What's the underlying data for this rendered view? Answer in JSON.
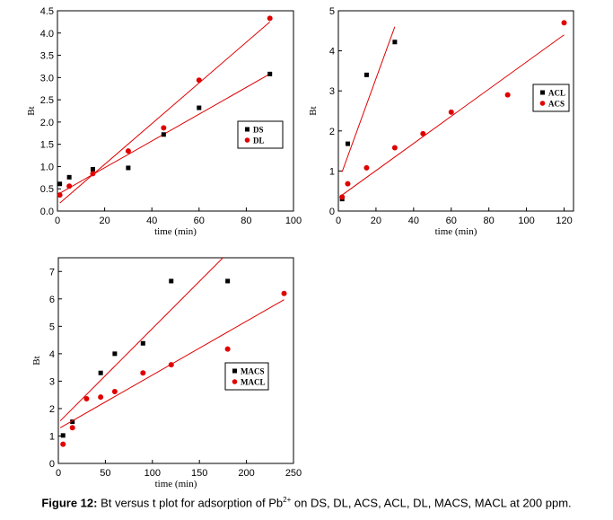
{
  "caption": {
    "label": "Figure 12:",
    "text_before": " Bt versus t plot for adsorption of Pb",
    "superscript": "2+",
    "text_after": " on DS, DL, ACS, ACL, DL, MACS, MACL at 200 ppm."
  },
  "chart_data": [
    {
      "type": "scatter",
      "title": "",
      "xlabel": "time (min)",
      "ylabel": "Bt",
      "xlim": [
        0,
        100
      ],
      "ylim": [
        0,
        4.5
      ],
      "xticks": [
        0,
        20,
        40,
        60,
        80,
        100
      ],
      "xtick_labels": [
        "0",
        "20",
        "40",
        "60",
        "80",
        "100"
      ],
      "yticks": [
        0,
        0.5,
        1.0,
        1.5,
        2.0,
        2.5,
        3.0,
        3.5,
        4.0,
        4.5
      ],
      "ytick_labels": [
        "0.0",
        "0.5",
        "1.0",
        "1.5",
        "2.0",
        "2.5",
        "3.0",
        "3.5",
        "4.0",
        "4.5"
      ],
      "grid": false,
      "legend_position": "right",
      "series": [
        {
          "name": "DS",
          "marker": "square",
          "color": "#000000",
          "x": [
            1,
            5,
            15,
            30,
            45,
            60,
            90
          ],
          "y": [
            0.61,
            0.76,
            0.94,
            0.97,
            1.72,
            2.32,
            3.08
          ],
          "fit": [
            [
              1,
              0.4
            ],
            [
              90,
              3.08
            ]
          ]
        },
        {
          "name": "DL",
          "marker": "circle",
          "color": "#e00000",
          "x": [
            1,
            5,
            15,
            30,
            45,
            60,
            90
          ],
          "y": [
            0.36,
            0.56,
            0.84,
            1.35,
            1.87,
            2.94,
            4.33
          ],
          "fit": [
            [
              1,
              0.18
            ],
            [
              90,
              4.25
            ]
          ]
        }
      ]
    },
    {
      "type": "scatter",
      "title": "",
      "xlabel": "time (min)",
      "ylabel": "Bt",
      "xlim": [
        0,
        125
      ],
      "ylim": [
        0,
        5
      ],
      "xticks": [
        0,
        20,
        40,
        60,
        80,
        100,
        120
      ],
      "xtick_labels": [
        "0",
        "20",
        "40",
        "60",
        "80",
        "100",
        "120"
      ],
      "yticks": [
        0,
        1,
        2,
        3,
        4,
        5
      ],
      "ytick_labels": [
        "0",
        "1",
        "2",
        "3",
        "4",
        "5"
      ],
      "grid": false,
      "legend_position": "right",
      "series": [
        {
          "name": "ACL",
          "marker": "square",
          "color": "#000000",
          "x": [
            2,
            5,
            15,
            30
          ],
          "y": [
            0.3,
            1.68,
            3.4,
            4.22
          ],
          "fit": [
            [
              2,
              0.98
            ],
            [
              30,
              4.6
            ]
          ]
        },
        {
          "name": "ACS",
          "marker": "circle",
          "color": "#e00000",
          "x": [
            2,
            5,
            15,
            30,
            45,
            60,
            90,
            120
          ],
          "y": [
            0.35,
            0.68,
            1.08,
            1.58,
            1.93,
            2.47,
            2.9,
            4.7
          ],
          "fit": [
            [
              2,
              0.4
            ],
            [
              120,
              4.4
            ]
          ]
        }
      ]
    },
    {
      "type": "scatter",
      "title": "",
      "xlabel": "time (min)",
      "ylabel": "Bt",
      "xlim": [
        0,
        250
      ],
      "ylim": [
        0,
        7.5
      ],
      "xticks": [
        0,
        50,
        100,
        150,
        200,
        250
      ],
      "xtick_labels": [
        "0",
        "50",
        "100",
        "150",
        "200",
        "250"
      ],
      "yticks": [
        0,
        1,
        2,
        3,
        4,
        5,
        6,
        7
      ],
      "ytick_labels": [
        "0",
        "1",
        "2",
        "3",
        "4",
        "5",
        "6",
        "7"
      ],
      "grid": false,
      "legend_position": "bottom-right",
      "series": [
        {
          "name": "MACS",
          "marker": "square",
          "color": "#000000",
          "x": [
            5,
            15,
            45,
            60,
            90,
            120,
            180
          ],
          "y": [
            1.02,
            1.52,
            3.3,
            4.0,
            4.38,
            6.65,
            6.65
          ],
          "fit": [
            [
              2,
              1.55
            ],
            [
              175,
              7.5
            ]
          ]
        },
        {
          "name": "MACL",
          "marker": "circle",
          "color": "#e00000",
          "x": [
            5,
            15,
            30,
            45,
            60,
            90,
            120,
            180,
            240
          ],
          "y": [
            0.7,
            1.3,
            2.36,
            2.42,
            2.62,
            3.3,
            3.6,
            4.17,
            6.2
          ],
          "fit": [
            [
              2,
              1.3
            ],
            [
              240,
              5.97
            ]
          ]
        }
      ]
    }
  ]
}
